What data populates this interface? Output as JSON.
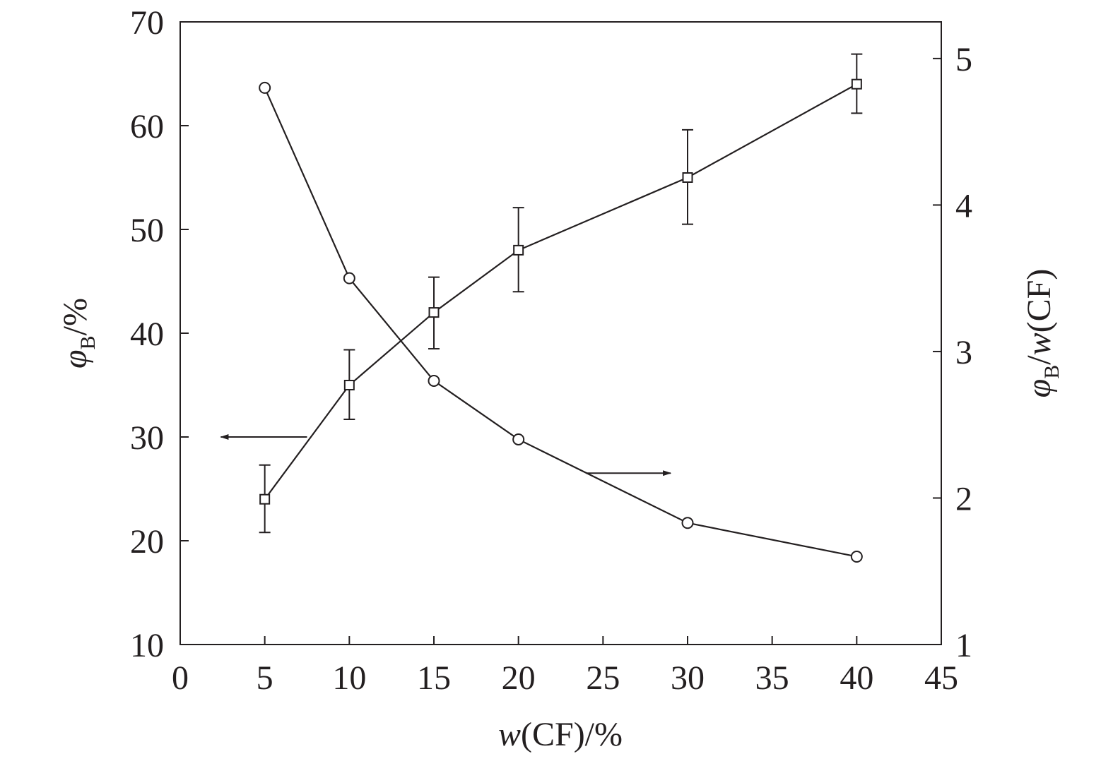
{
  "chart_data": {
    "type": "line",
    "xlabel": {
      "var": "w",
      "rest": "(CF)/%"
    },
    "ylabel_left": {
      "var": "φ",
      "sub": "B",
      "rest": "/%"
    },
    "ylabel_right": {
      "var": "φ",
      "sub": "B",
      "mid": "/",
      "var2": "w",
      "rest": "(CF)"
    },
    "xlim": [
      0,
      45
    ],
    "xticks": [
      0,
      5,
      10,
      15,
      20,
      25,
      30,
      35,
      40,
      45
    ],
    "ylim_left": [
      10,
      70
    ],
    "yticks_left": [
      10,
      20,
      30,
      40,
      50,
      60,
      70
    ],
    "ylim_right": [
      1,
      5.25
    ],
    "yticks_right": [
      1,
      2,
      3,
      4,
      5
    ],
    "grid": false,
    "series": [
      {
        "axis": "left",
        "marker": "square",
        "points": [
          {
            "x": 5,
            "y": 24,
            "err_lo": 20.8,
            "err_hi": 27.3
          },
          {
            "x": 10,
            "y": 35,
            "err_lo": 31.7,
            "err_hi": 38.4
          },
          {
            "x": 15,
            "y": 42,
            "err_lo": 38.5,
            "err_hi": 45.4
          },
          {
            "x": 20,
            "y": 48,
            "err_lo": 44,
            "err_hi": 52.1
          },
          {
            "x": 30,
            "y": 55,
            "err_lo": 50.5,
            "err_hi": 59.6
          },
          {
            "x": 40,
            "y": 64,
            "err_lo": 61.2,
            "err_hi": 66.9
          }
        ]
      },
      {
        "axis": "right",
        "marker": "circle",
        "points": [
          {
            "x": 5,
            "y": 4.8
          },
          {
            "x": 10,
            "y": 3.5
          },
          {
            "x": 15,
            "y": 2.8
          },
          {
            "x": 20,
            "y": 2.4
          },
          {
            "x": 30,
            "y": 1.83
          },
          {
            "x": 40,
            "y": 1.6
          }
        ]
      }
    ],
    "annotations": [
      {
        "type": "arrow",
        "direction": "left",
        "points_to": "left axis",
        "x_from": 7.5,
        "x_to": 2.4,
        "y": 30
      },
      {
        "type": "arrow",
        "direction": "right",
        "points_to": "right axis",
        "x_from": 24,
        "x_to": 29,
        "y": 2.17
      }
    ]
  }
}
